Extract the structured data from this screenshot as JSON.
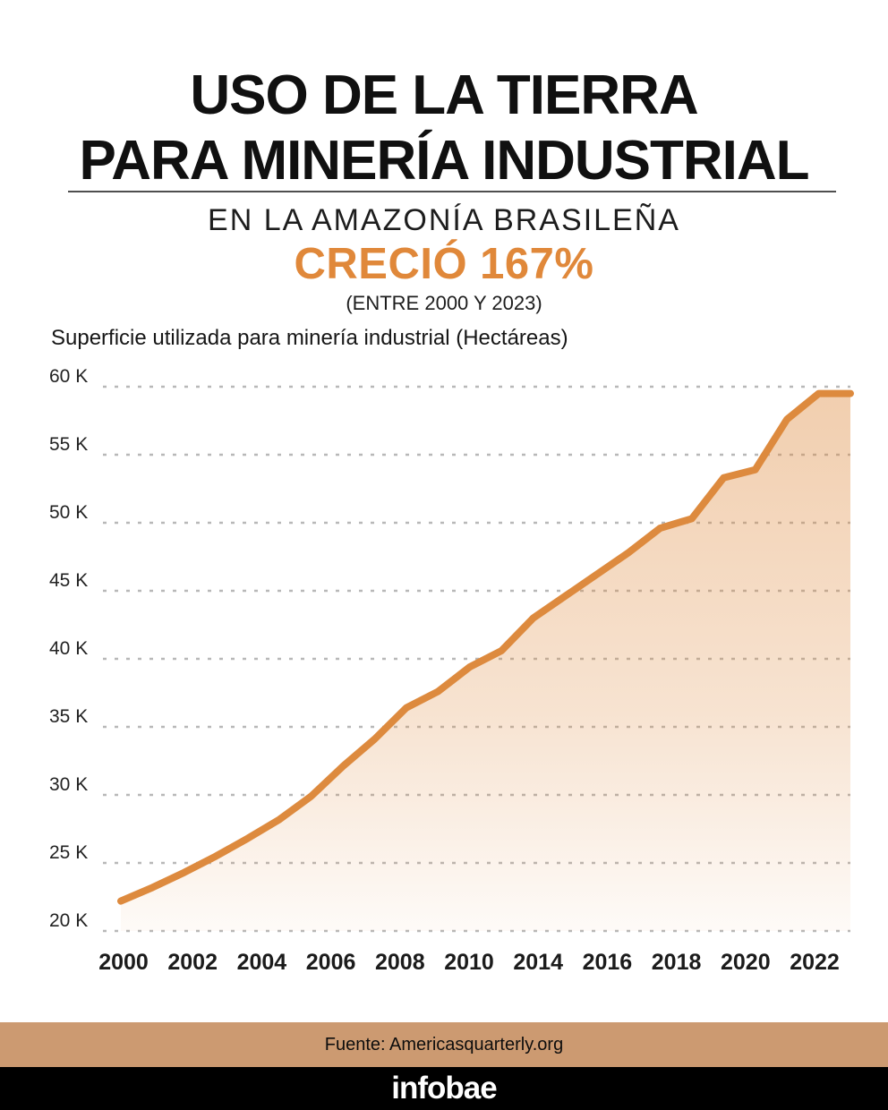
{
  "header": {
    "title_line1": "USO DE LA TIERRA",
    "title_line2": "PARA MINERÍA INDUSTRIAL",
    "subtitle": "EN LA AMAZONÍA BRASILEÑA",
    "highlight": "CRECIÓ 167%",
    "period": "(ENTRE 2000 Y 2023)",
    "highlight_color": "#E0883A"
  },
  "chart_data": {
    "type": "area",
    "title": "Superficie utilizada para minería industrial (Hectáreas)",
    "x": [
      2000,
      2001,
      2002,
      2003,
      2004,
      2005,
      2006,
      2007,
      2008,
      2009,
      2010,
      2011,
      2012,
      2013,
      2014,
      2015,
      2016,
      2017,
      2018,
      2019,
      2020,
      2021,
      2022,
      2023
    ],
    "values": [
      22.2,
      23.2,
      24.3,
      25.5,
      26.8,
      28.2,
      29.9,
      32.1,
      34.1,
      36.4,
      37.6,
      39.4,
      40.6,
      43.0,
      44.6,
      46.2,
      47.8,
      49.6,
      50.3,
      53.3,
      53.9,
      57.6,
      59.5,
      59.5
    ],
    "unit": "K hectáreas",
    "ylim": [
      20,
      60
    ],
    "y_ticks": [
      20,
      25,
      30,
      35,
      40,
      45,
      50,
      55,
      60
    ],
    "y_tick_labels": [
      "20 K",
      "25 K",
      "30 K",
      "35 K",
      "40 K",
      "45 K",
      "50 K",
      "55 K",
      "60 K"
    ],
    "x_tick_labels": [
      "2000",
      "2002",
      "2004",
      "2006",
      "2008",
      "2010",
      "2014",
      "2016",
      "2018",
      "2020",
      "2022"
    ],
    "grid": "dotted horizontal",
    "legend": "none",
    "line_color": "#DD8A3E",
    "fill_color_top": "rgba(222,138,62,0.42)",
    "fill_color_bottom": "rgba(222,138,62,0.04)",
    "grid_color": "#B8B8B8",
    "axis_label_color": "#1B1B1B"
  },
  "footer": {
    "source": "Fuente: Americasquarterly.org",
    "brand": "infobae",
    "source_bg": "#CC9A71",
    "brand_bg": "#000000"
  }
}
